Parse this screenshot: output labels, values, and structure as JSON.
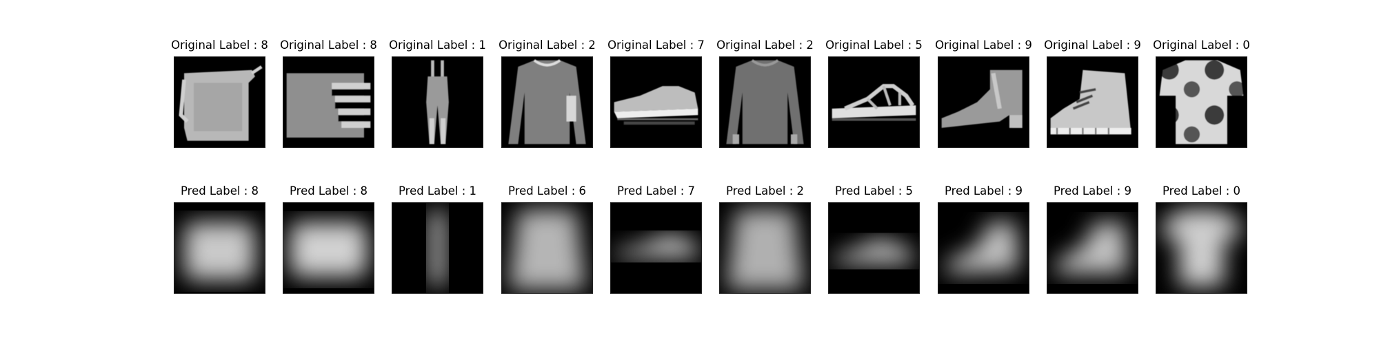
{
  "originals": [
    {
      "title": "Original Label : 8",
      "item": "bag"
    },
    {
      "title": "Original Label : 8",
      "item": "bag-striped"
    },
    {
      "title": "Original Label : 1",
      "item": "trouser-overall"
    },
    {
      "title": "Original Label : 2",
      "item": "pullover"
    },
    {
      "title": "Original Label : 7",
      "item": "sneaker"
    },
    {
      "title": "Original Label : 2",
      "item": "pullover"
    },
    {
      "title": "Original Label : 5",
      "item": "sandal"
    },
    {
      "title": "Original Label : 9",
      "item": "ankle-boot"
    },
    {
      "title": "Original Label : 9",
      "item": "ankle-boot-laced"
    },
    {
      "title": "Original Label : 0",
      "item": "tshirt-patterned"
    }
  ],
  "predictions": [
    {
      "title": "Pred Label : 8",
      "item": "bag-blur"
    },
    {
      "title": "Pred Label : 8",
      "item": "bag-blur"
    },
    {
      "title": "Pred Label : 1",
      "item": "trouser-blur"
    },
    {
      "title": "Pred Label : 6",
      "item": "shirt-blur"
    },
    {
      "title": "Pred Label : 7",
      "item": "sneaker-blur"
    },
    {
      "title": "Pred Label : 2",
      "item": "pullover-blur"
    },
    {
      "title": "Pred Label : 5",
      "item": "sandal-blur"
    },
    {
      "title": "Pred Label : 9",
      "item": "boot-blur"
    },
    {
      "title": "Pred Label : 9",
      "item": "boot-blur"
    },
    {
      "title": "Pred Label : 0",
      "item": "tshirt-blur"
    }
  ]
}
